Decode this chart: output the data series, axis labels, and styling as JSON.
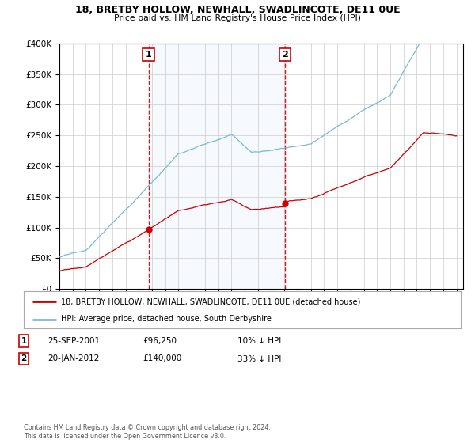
{
  "title": "18, BRETBY HOLLOW, NEWHALL, SWADLINCOTE, DE11 0UE",
  "subtitle": "Price paid vs. HM Land Registry's House Price Index (HPI)",
  "legend_line1": "18, BRETBY HOLLOW, NEWHALL, SWADLINCOTE, DE11 0UE (detached house)",
  "legend_line2": "HPI: Average price, detached house, South Derbyshire",
  "sale1_date": "25-SEP-2001",
  "sale1_price": "£96,250",
  "sale1_hpi": "10% ↓ HPI",
  "sale1_year": 2001.73,
  "sale1_value": 96250,
  "sale2_date": "20-JAN-2012",
  "sale2_price": "£140,000",
  "sale2_hpi": "33% ↓ HPI",
  "sale2_year": 2012.05,
  "sale2_value": 140000,
  "hpi_color": "#7ab8d9",
  "price_color": "#cc0000",
  "vline_color": "#cc0000",
  "shade_color": "#ddeeff",
  "ylim_min": 0,
  "ylim_max": 400000,
  "xmin": 1995,
  "xmax": 2025,
  "copyright": "Contains HM Land Registry data © Crown copyright and database right 2024.\nThis data is licensed under the Open Government Licence v3.0.",
  "background_color": "#ffffff",
  "grid_color": "#cccccc"
}
